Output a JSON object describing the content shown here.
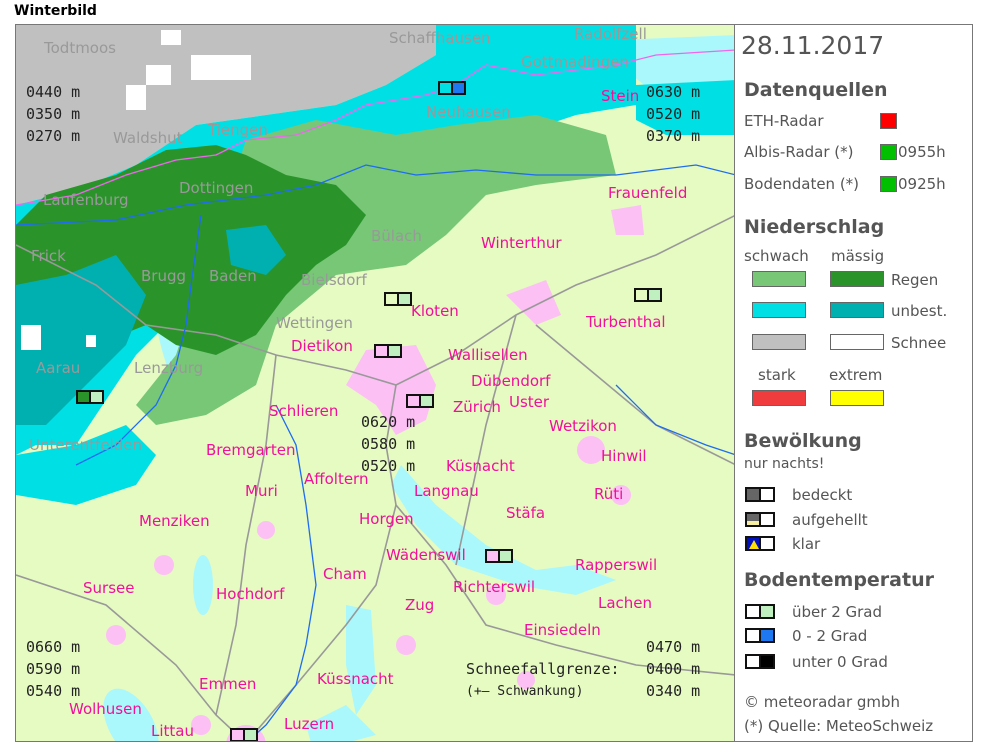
{
  "title": "Winterbild",
  "map": {
    "colors": {
      "base": "#e6fbc2",
      "lake": "#aaf8fc",
      "settlement": "#fcc0f4",
      "road": "#999999",
      "river": "#1e6cf0",
      "border": "#ee66ee",
      "rain_light": "#77c777",
      "rain_moderate": "#2a942a",
      "mixed_light": "#00e0e4",
      "mixed_moderate": "#00b0b0",
      "snow_light": "#c0c0c0",
      "snow_moderate": "#ffffff"
    },
    "towns": [
      "Todtmoos",
      "Schaffhausen",
      "Radolfzell",
      "Gottmadingen",
      "Stein",
      "Waldshut",
      "Tiengen",
      "Neuhausen",
      "Dottingen",
      "Laufenburg",
      "Frick",
      "Brugg",
      "Baden",
      "Bülach",
      "Bielsdorf",
      "Wettingen",
      "Dietikon",
      "Aarau",
      "Lenzburg",
      "Unterentfelden",
      "Frauenfeld",
      "Winterthur",
      "Kloten",
      "Turbenthal",
      "Wallisellen",
      "Dübendorf",
      "Zürich",
      "Uster",
      "Schlieren",
      "Bremgarten",
      "Wetzikon",
      "Küsnacht",
      "Hinwil",
      "Affoltern",
      "Muri",
      "Langnau",
      "Menziken",
      "Rüti",
      "Horgen",
      "Stäfa",
      "Wädenswil",
      "Rapperswil",
      "Cham",
      "Richterswil",
      "Sursee",
      "Hochdorf",
      "Lachen",
      "Zug",
      "Einsiedeln",
      "Küssnacht",
      "Emmen",
      "Wolhusen",
      "Luzern",
      "Littau"
    ],
    "snowline_readouts": {
      "nw": "0440 m\n0350 m\n0270 m",
      "ne": "0630 m\n0520 m\n0370 m",
      "center": "0620 m\n0580 m\n0520 m",
      "sw": "0660 m\n0590 m\n0540 m",
      "se_values": "0470 m\n0400 m\n0340 m",
      "se_label": "Schneefallgrenze:",
      "se_note": "(+– Schwankung)"
    },
    "stations": [
      {
        "cloud": "#00e0e4",
        "temp": "#1e78f0"
      },
      {
        "cloud": "#e6fbc2",
        "temp": "#c0f0c0"
      },
      {
        "cloud": "#e6fbc2",
        "temp": "#c0f0c0"
      },
      {
        "cloud": "#fcc0f4",
        "temp": "#c0f0c0"
      },
      {
        "cloud": "#fcc0f4",
        "temp": "#c0f0c0"
      },
      {
        "cloud": "#2a942a",
        "temp": "#c0f0c0"
      },
      {
        "cloud": "#fcc0f4",
        "temp": "#c0f0c0"
      },
      {
        "cloud": "#fcc0f4",
        "temp": "#c0f0c0"
      }
    ]
  },
  "legend": {
    "date": "28.11.2017",
    "sources_title": "Datenquellen",
    "sources": [
      {
        "label": "ETH-Radar",
        "status": "#ff0000",
        "time": ""
      },
      {
        "label": "Albis-Radar (*)",
        "status": "#00c000",
        "time": "0955h"
      },
      {
        "label": "Bodendaten (*)",
        "status": "#00c000",
        "time": "0925h"
      }
    ],
    "precip_title": "Niederschlag",
    "col_light": "schwach",
    "col_moderate": "mässig",
    "precip_rows": [
      {
        "label": "Regen",
        "light": "#77c777",
        "moderate": "#2a942a"
      },
      {
        "label": "unbest.",
        "light": "#00e0e4",
        "moderate": "#00b0b0"
      },
      {
        "label": "Schnee",
        "light": "#c0c0c0",
        "moderate": "#ffffff"
      }
    ],
    "col_strong": "stark",
    "col_extreme": "extrem",
    "strong_color": "#f03c3c",
    "extreme_color": "#ffff00",
    "cloud_title": "Bewölkung",
    "cloud_note": "nur nachts!",
    "cloud_rows": [
      "bedeckt",
      "aufgehellt",
      "klar"
    ],
    "temp_title": "Bodentemperatur",
    "temp_rows": [
      {
        "label": "über 2 Grad",
        "color": "#c0f0c0"
      },
      {
        "label": "0 - 2 Grad",
        "color": "#1e78f0"
      },
      {
        "label": "unter 0 Grad",
        "color": "#000000"
      }
    ],
    "copyright": "© meteoradar gmbh",
    "source_note": "(*) Quelle: MeteoSchweiz"
  }
}
